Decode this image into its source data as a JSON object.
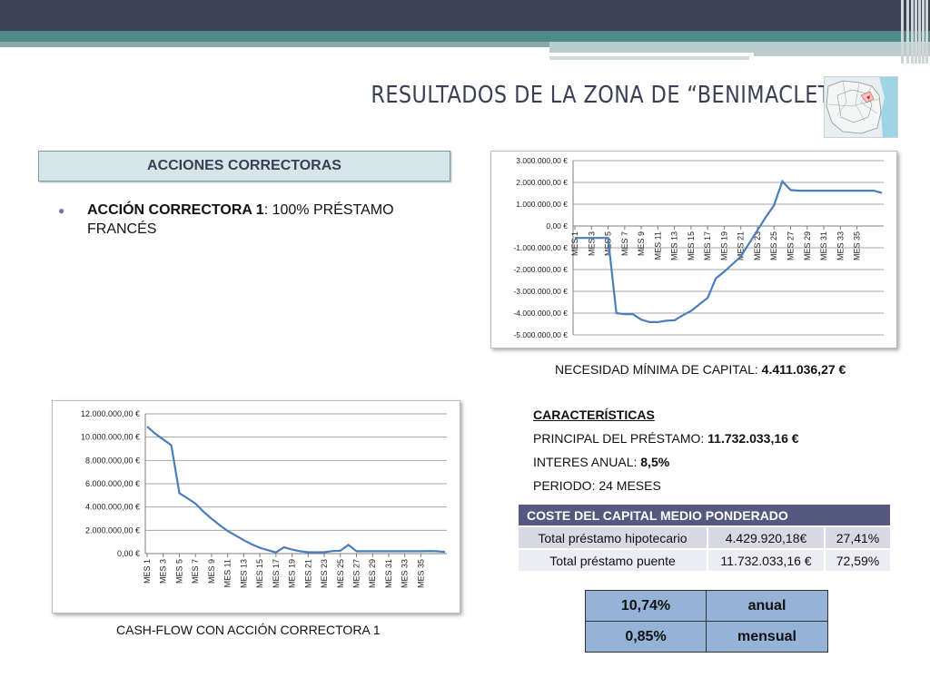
{
  "title": "RESULTADOS DE LA ZONA DE “BENIMACLET”",
  "section_box": "ACCIONES CORRECTORAS",
  "bullet": {
    "bold": "ACCIÓN CORRECTORA 1",
    "rest": ":  100% PRÉSTAMO FRANCÉS"
  },
  "caption_top": {
    "label": "NECESIDAD MÍNIMA DE CAPITAL: ",
    "value": "4.411.036,27 €"
  },
  "caption_bottom": "CASH-FLOW CON ACCIÓN CORRECTORA 1",
  "characteristics": {
    "heading": "CARACTERÍSTICAS",
    "principal_label": "PRINCIPAL DEL PRÉSTAMO: ",
    "principal_value": "11.732.033,16 €",
    "interest_label": "INTERES ANUAL: ",
    "interest_value": "8,5%",
    "period": "PERIODO: 24 MESES"
  },
  "cost_table": {
    "header": "COSTE DEL CAPITAL MEDIO PONDERADO",
    "rows": [
      [
        "Total préstamo hipotecario",
        "4.429.920,18€",
        "27,41%"
      ],
      [
        "Total préstamo puente",
        "11.732.033,16 €",
        "72,59%"
      ]
    ]
  },
  "rates": [
    [
      "10,74%",
      "anual"
    ],
    [
      "0,85%",
      "mensual"
    ]
  ],
  "colors": {
    "line": "#4a7ebb",
    "header": "#55597f",
    "rates_bg": "#95b3d7"
  },
  "chart_data": [
    {
      "type": "line",
      "title": "",
      "ylim": [
        -5000000,
        3000000
      ],
      "y_ticks": [
        "3.000.000,00 €",
        "2.000.000,00 €",
        "1.000.000,00 €",
        "0,00 €",
        "-1.000.000,00 €",
        "-2.000.000,00 €",
        "-3.000.000,00 €",
        "-4.000.000,00 €",
        "-5.000.000,00 €"
      ],
      "x_labels": [
        "MES 1",
        "MES 3",
        "MES 5",
        "MES 7",
        "MES 9",
        "MES 11",
        "MES 13",
        "MES 15",
        "MES 17",
        "MES 19",
        "MES 21",
        "MES 23",
        "MES 25",
        "MES 27",
        "MES 29",
        "MES 31",
        "MES 33",
        "MES 35"
      ],
      "series": [
        {
          "values": [
            -550000,
            -550000,
            -550000,
            -550000,
            -550000,
            -4000000,
            -4050000,
            -4050000,
            -4300000,
            -4411036,
            -4411036,
            -4350000,
            -4330000,
            -4100000,
            -3900000,
            -3600000,
            -3300000,
            -2400000,
            -2100000,
            -1750000,
            -1400000,
            -800000,
            -200000,
            400000,
            950000,
            2050000,
            1650000,
            1620000,
            1620000,
            1620000,
            1620000,
            1620000,
            1620000,
            1620000,
            1620000,
            1620000,
            1620000,
            1520000
          ]
        }
      ]
    },
    {
      "type": "line",
      "title": "",
      "ylim": [
        0,
        12000000
      ],
      "y_ticks": [
        "12.000.000,00 €",
        "10.000.000,00 €",
        "8.000.000,00 €",
        "6.000.000,00 €",
        "4.000.000,00 €",
        "2.000.000,00 €",
        "0,00 €"
      ],
      "x_labels": [
        "MES 1",
        "MES 3",
        "MES 5",
        "MES 7",
        "MES 9",
        "MES 11",
        "MES 13",
        "MES 15",
        "MES 17",
        "MES 19",
        "MES 21",
        "MES 23",
        "MES 25",
        "MES 27",
        "MES 29",
        "MES 31",
        "MES 33",
        "MES 35"
      ],
      "series": [
        {
          "values": [
            10900000,
            10300000,
            9800000,
            9300000,
            5200000,
            4750000,
            4300000,
            3600000,
            3000000,
            2450000,
            1950000,
            1550000,
            1150000,
            800000,
            500000,
            300000,
            100000,
            550000,
            350000,
            200000,
            120000,
            120000,
            120000,
            220000,
            250000,
            750000,
            200000,
            200000,
            200000,
            200000,
            200000,
            200000,
            200000,
            200000,
            200000,
            220000,
            200000,
            150000
          ]
        }
      ]
    }
  ]
}
